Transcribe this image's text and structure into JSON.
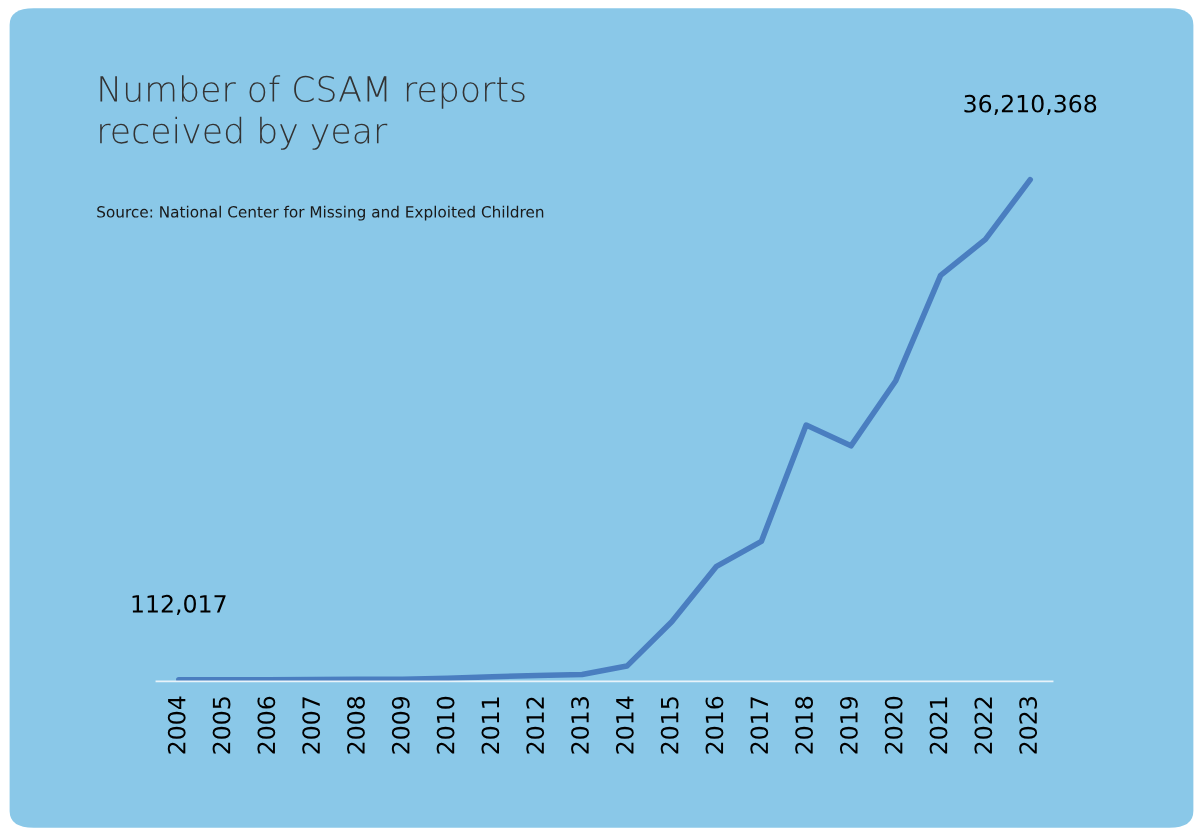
{
  "chart_data": {
    "type": "line",
    "title": "Number of CSAM reports\nreceived by year",
    "annotations": [
      "Source: National Center for Missing and Exploited Children"
    ],
    "categories": [
      "2004",
      "2005",
      "2006",
      "2007",
      "2008",
      "2009",
      "2010",
      "2011",
      "2012",
      "2013",
      "2014",
      "2015",
      "2016",
      "2017",
      "2018",
      "2019",
      "2020",
      "2021",
      "2022",
      "2023"
    ],
    "tick_labels": "x",
    "series": [
      {
        "color": "#4a7ec0",
        "values": [
          112017,
          110000,
          120000,
          130000,
          140000,
          150000,
          220000,
          330000,
          420000,
          500000,
          1100000,
          4300000,
          8300000,
          10100000,
          18500000,
          17000000,
          21700000,
          29300000,
          31900000,
          36210368
        ],
        "value_labels": [
          "112,017",
          null,
          null,
          null,
          null,
          null,
          null,
          null,
          null,
          null,
          null,
          null,
          null,
          null,
          null,
          null,
          null,
          null,
          null,
          "36,210,368"
        ]
      }
    ],
    "grid": false,
    "legend": false,
    "marker": "none",
    "line_style": "solid"
  }
}
